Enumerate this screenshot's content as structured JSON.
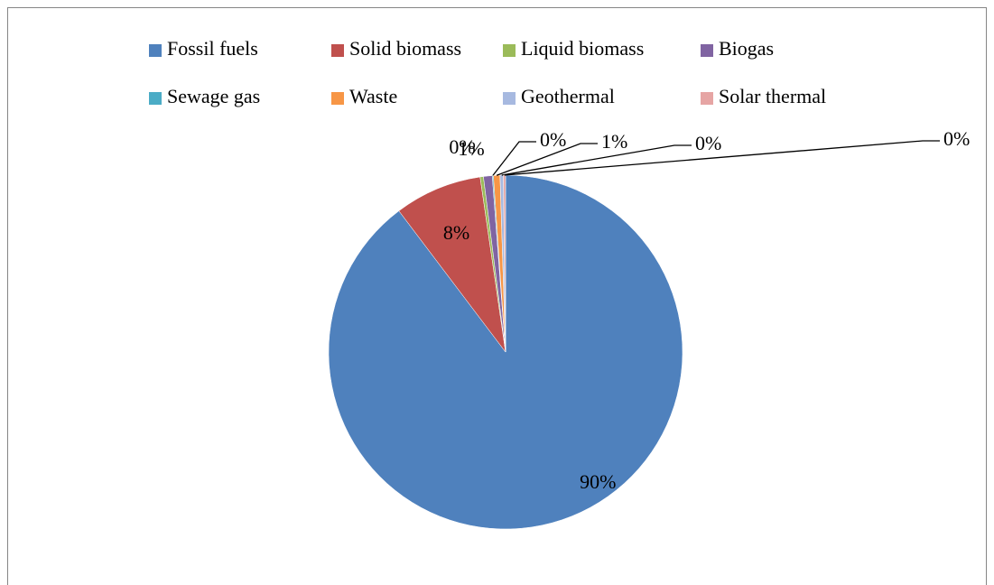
{
  "chart_data": {
    "type": "pie",
    "categories": [
      "Fossil fuels",
      "Solid biomass",
      "Liquid biomass",
      "Biogas",
      "Sewage gas",
      "Waste",
      "Geothermal",
      "Solar thermal"
    ],
    "values": [
      89.7,
      8.0,
      0.3,
      0.8,
      0.1,
      0.6,
      0.3,
      0.2
    ],
    "value_labels": [
      "90%",
      "8%",
      "0%",
      "1%",
      "0%",
      "1%",
      "0%",
      "0%"
    ],
    "colors": [
      "#4f81bd",
      "#c0504d",
      "#9bbb59",
      "#8064a2",
      "#4bacc6",
      "#f79646",
      "#a7b9e0",
      "#e6a5a4"
    ],
    "legend": "top"
  }
}
